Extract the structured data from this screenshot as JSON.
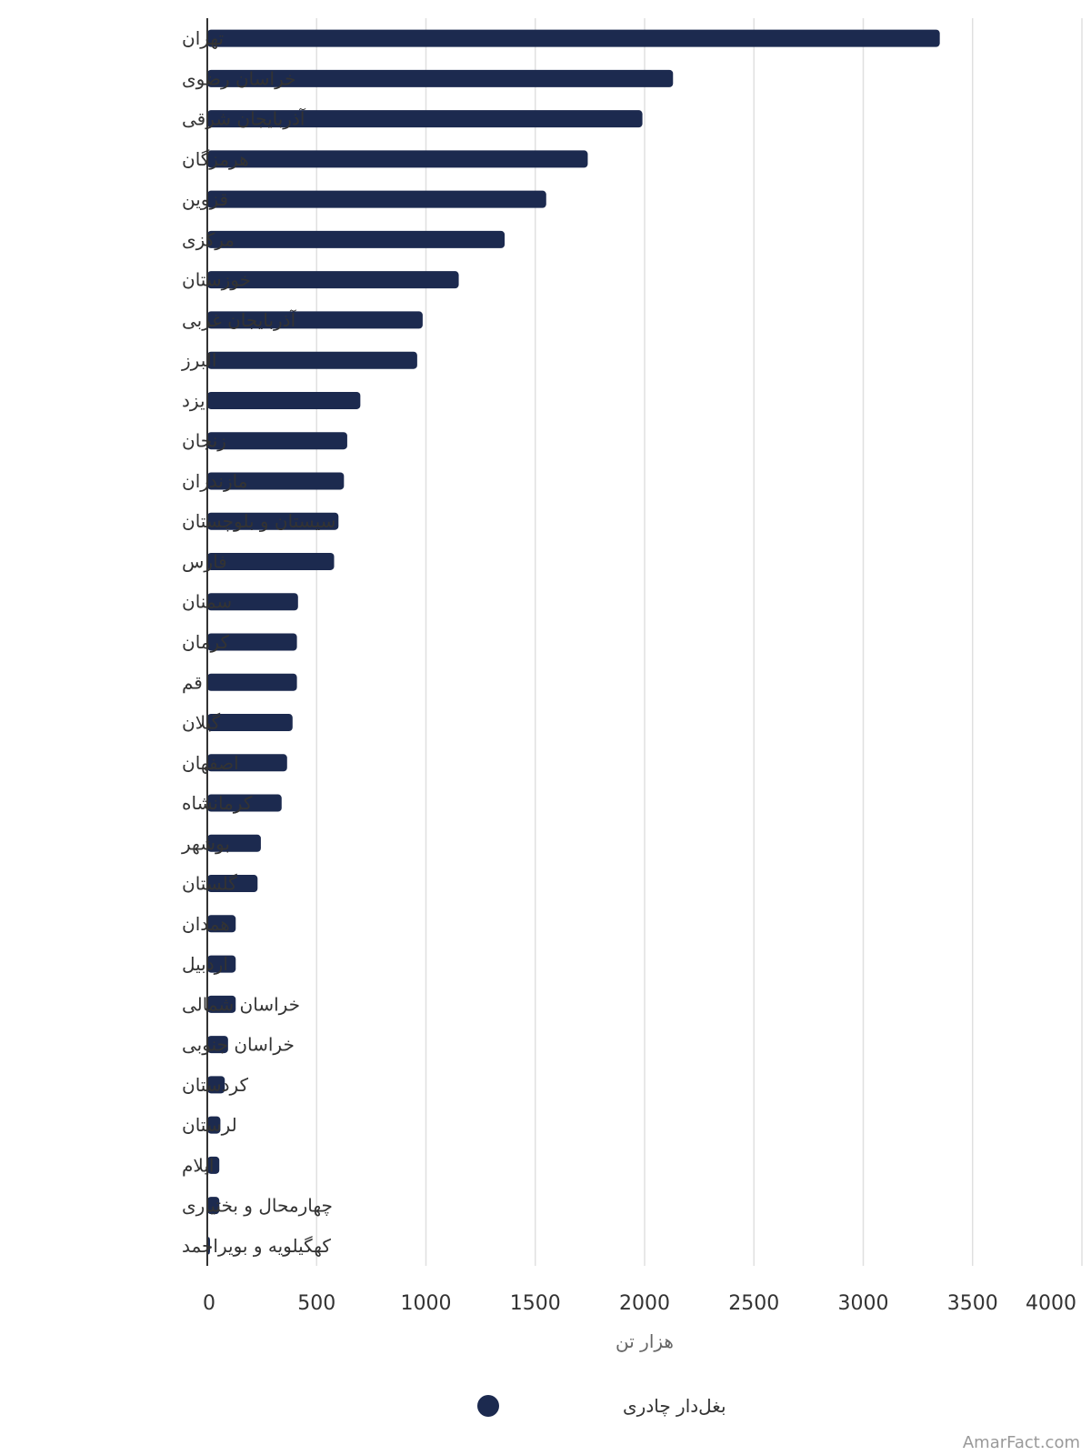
{
  "chart_data": {
    "type": "bar",
    "orientation": "horizontal",
    "categories": [
      "تهران",
      "خراسان رضوی",
      "آذربایجان شرقی",
      "هرمزگان",
      "قزوین",
      "مرکزی",
      "خوزستان",
      "آذربایجان غربی",
      "البرز",
      "یزد",
      "زنجان",
      "مازندران",
      "سیستان و بلوچستان",
      "فارس",
      "سمنان",
      "کرمان",
      "قم",
      "گیلان",
      "اصفهان",
      "کرمانشاه",
      "بوشهر",
      "گلستان",
      "همدان",
      "اردبیل",
      "خراسان شمالی",
      "خراسان جنوبی",
      "کردستان",
      "لرستان",
      "ایلام",
      "چهارمحال و بختیاری",
      "کهگیلویه و بویراحمد"
    ],
    "series": [
      {
        "name": "بغل‌دار چادری",
        "color": "#1c2a4f",
        "values": [
          3350,
          2130,
          1990,
          1740,
          1550,
          1360,
          1150,
          985,
          960,
          700,
          640,
          625,
          600,
          580,
          415,
          410,
          410,
          390,
          365,
          340,
          245,
          230,
          130,
          130,
          130,
          95,
          80,
          60,
          55,
          55,
          10
        ]
      }
    ],
    "xlabel": "هزار تن",
    "xlim": [
      0,
      4000
    ],
    "xticks": [
      "0",
      "500",
      "1000",
      "1500",
      "2000",
      "2500",
      "3000",
      "3500",
      "4000"
    ],
    "xtick_values": [
      0,
      500,
      1000,
      1500,
      2000,
      2500,
      3000,
      3500,
      4000
    ],
    "grid": "vertical",
    "legend": "bottom-center"
  },
  "credit": "AmarFact.com"
}
